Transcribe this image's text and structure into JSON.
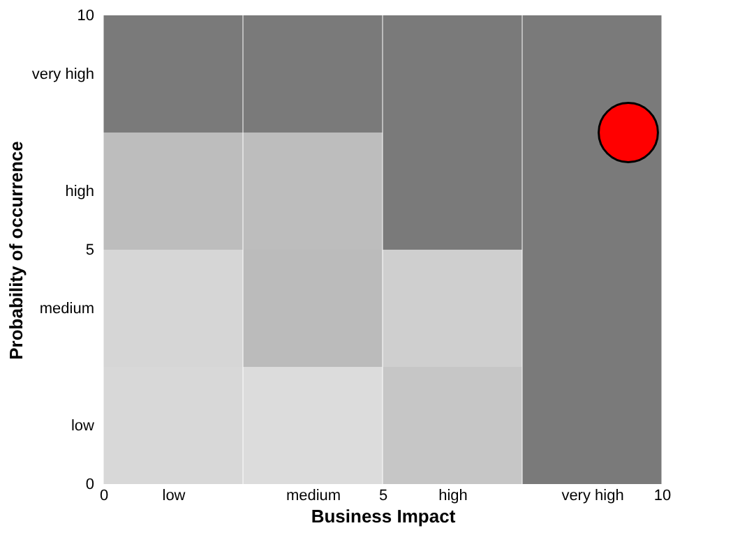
{
  "chart_data": {
    "type": "bar",
    "stacked": true,
    "xlabel": "Business Impact",
    "ylabel": "Probability of occurrence",
    "xlim": [
      0,
      10
    ],
    "ylim": [
      0,
      10
    ],
    "xticks": [
      0,
      {
        "value": 1.25,
        "label": "low"
      },
      {
        "value": 3.75,
        "label": "medium"
      },
      5,
      {
        "value": 6.25,
        "label": "high"
      },
      {
        "value": 8.75,
        "label": "very high"
      },
      10
    ],
    "yticks": [
      0,
      {
        "value": 1.25,
        "label": "low"
      },
      {
        "value": 3.75,
        "label": "medium"
      },
      5,
      {
        "value": 6.25,
        "label": "high"
      },
      {
        "value": 8.75,
        "label": "very high"
      },
      10
    ],
    "x": [
      1.25,
      3.75,
      6.25,
      8.75
    ],
    "series": [
      {
        "values": [
          2.5,
          2.5,
          2.5,
          2.5
        ],
        "colors": [
          "#d8d8d8",
          "#dcdcdc",
          "#c6c6c6",
          "#7a7a7a"
        ]
      },
      {
        "values": [
          2.5,
          2.5,
          2.5,
          2.5
        ],
        "colors": [
          "#d6d6d6",
          "#bbbbbb",
          "#cfcfcf",
          "#7a7a7a"
        ]
      },
      {
        "values": [
          2.5,
          2.5,
          2.5,
          2.5
        ],
        "colors": [
          "#bdbdbd",
          "#bdbdbd",
          "#7a7a7a",
          "#7a7a7a"
        ]
      },
      {
        "values": [
          2.5,
          2.5,
          2.5,
          2.5
        ],
        "colors": [
          "#7a7a7a",
          "#7a7a7a",
          "#7a7a7a",
          "#7a7a7a"
        ]
      },
      {
        "type": "scatter",
        "color": "#ff0000",
        "x": [
          9.4
        ],
        "values": [
          7.5
        ]
      }
    ],
    "marker": "circle"
  }
}
